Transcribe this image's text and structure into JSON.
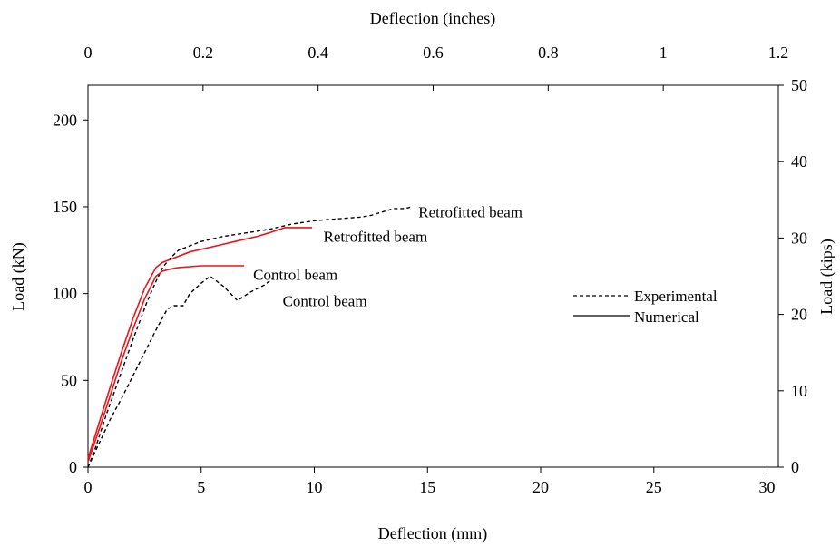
{
  "chart_data": {
    "type": "line",
    "title": "",
    "xlabel": "Deflection (mm)",
    "ylabel": "Load (kN)",
    "x2label": "Deflection (inches)",
    "y2label": "Load (kips)",
    "xlim": [
      0,
      30.5
    ],
    "ylim": [
      0,
      220
    ],
    "x2lim": [
      0,
      1.2
    ],
    "y2lim": [
      0,
      50
    ],
    "xticks": [
      0,
      5,
      10,
      15,
      20,
      25,
      30
    ],
    "yticks": [
      0,
      50,
      100,
      150,
      200
    ],
    "x2ticks": [
      0,
      0.2,
      0.4,
      0.6,
      0.8,
      1,
      1.2
    ],
    "y2ticks": [
      0,
      10,
      20,
      30,
      40,
      50
    ],
    "grid": false,
    "legend_position": "middle-right",
    "legend": [
      {
        "label": "Experimental",
        "style": "dashed"
      },
      {
        "label": "Numerical",
        "style": "solid"
      }
    ],
    "series": [
      {
        "label": "Retrofitted beam",
        "kind": "Experimental",
        "color": "#000000",
        "style": "dashed",
        "x": [
          0,
          0.3,
          0.8,
          1.4,
          2.0,
          2.6,
          3.0,
          3.3,
          3.6,
          4.0,
          5.0,
          6.0,
          7.0,
          8.0,
          9.0,
          10.0,
          11.0,
          12.0,
          12.5,
          13.0,
          13.5,
          14.0,
          14.3
        ],
        "y": [
          0,
          10,
          30,
          52,
          74,
          95,
          107,
          115,
          120,
          125,
          130,
          133,
          135,
          137,
          140,
          142,
          143,
          144,
          145,
          147,
          149,
          149,
          150
        ]
      },
      {
        "label": "Retrofitted beam",
        "kind": "Numerical",
        "color": "#e8141c",
        "style": "solid",
        "x": [
          0,
          0.5,
          1.0,
          1.5,
          2.0,
          2.5,
          3.0,
          3.3,
          3.7,
          4.5,
          5.5,
          6.5,
          7.5,
          8.0,
          8.7,
          9.0,
          9.9
        ],
        "y": [
          5,
          26,
          47,
          67,
          86,
          103,
          115,
          118,
          120,
          124,
          127,
          130,
          133,
          135,
          138,
          138,
          138
        ]
      },
      {
        "label": "Control beam",
        "kind": "Numerical",
        "color": "#e8141c",
        "style": "solid",
        "x": [
          0,
          0.5,
          1.0,
          1.5,
          2.0,
          2.5,
          3.0,
          3.3,
          3.6,
          4.0,
          4.5,
          5.0,
          6.0,
          6.9
        ],
        "y": [
          3,
          22,
          42,
          62,
          80,
          97,
          110,
          113,
          114,
          115,
          115.5,
          116,
          116,
          116
        ]
      },
      {
        "label": "Control beam",
        "kind": "Experimental",
        "color": "#000000",
        "style": "dashed",
        "x": [
          0,
          0.5,
          1.0,
          1.5,
          2.0,
          2.5,
          3.0,
          3.5,
          3.8,
          4.2,
          4.5,
          5.0,
          5.4,
          6.0,
          6.6,
          7.2,
          7.8,
          8.2
        ],
        "y": [
          0,
          14,
          28,
          40,
          53,
          66,
          79,
          91,
          93,
          93,
          100,
          106,
          110,
          104,
          96,
          101,
          105,
          109
        ]
      }
    ],
    "annotations": [
      {
        "text": "Retrofitted beam",
        "x": 14.6,
        "y": 147
      },
      {
        "text": "Retrofitted beam",
        "x": 10.4,
        "y": 133
      },
      {
        "text": "Control beam",
        "x": 7.3,
        "y": 111
      },
      {
        "text": "Control beam",
        "x": 8.6,
        "y": 96
      }
    ]
  }
}
